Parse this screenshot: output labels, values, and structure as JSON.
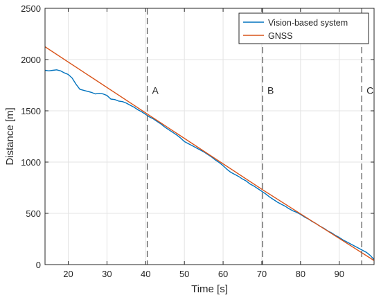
{
  "chart_data": {
    "type": "line",
    "title": "",
    "xlabel": "Time [s]",
    "ylabel": "Distance [m]",
    "xlim": [
      14,
      99
    ],
    "ylim": [
      0,
      2500
    ],
    "xticks": [
      20,
      30,
      40,
      50,
      60,
      70,
      80,
      90
    ],
    "yticks": [
      0,
      500,
      1000,
      1500,
      2000,
      2500
    ],
    "grid": true,
    "legend_position": "top-right",
    "series": [
      {
        "name": "Vision-based system",
        "color": "#0072BD",
        "x": [
          14,
          15,
          16,
          17,
          18,
          19,
          20,
          21,
          22,
          23,
          24,
          25,
          26,
          27,
          28,
          29,
          30,
          31,
          32,
          33,
          34,
          35,
          36,
          37,
          38,
          39,
          40,
          41,
          42,
          43,
          44,
          45,
          46,
          47,
          48,
          49,
          50,
          51,
          52,
          53,
          54,
          55,
          56,
          57,
          58,
          59,
          60,
          61,
          62,
          63,
          64,
          65,
          66,
          67,
          68,
          69,
          70,
          71,
          72,
          73,
          74,
          75,
          76,
          77,
          78,
          79,
          80,
          81,
          82,
          83,
          84,
          85,
          86,
          87,
          88,
          89,
          90,
          91,
          92,
          93,
          94,
          95,
          96,
          97,
          98,
          99
        ],
        "y": [
          1895,
          1890,
          1895,
          1900,
          1890,
          1870,
          1855,
          1820,
          1760,
          1710,
          1700,
          1690,
          1680,
          1665,
          1670,
          1665,
          1650,
          1615,
          1610,
          1595,
          1590,
          1575,
          1555,
          1535,
          1510,
          1490,
          1465,
          1440,
          1420,
          1395,
          1370,
          1340,
          1315,
          1290,
          1265,
          1235,
          1200,
          1180,
          1160,
          1140,
          1120,
          1100,
          1075,
          1050,
          1020,
          995,
          965,
          930,
          900,
          880,
          860,
          835,
          815,
          785,
          765,
          740,
          715,
          690,
          660,
          635,
          610,
          590,
          570,
          545,
          525,
          510,
          490,
          465,
          445,
          420,
          400,
          375,
          355,
          330,
          310,
          285,
          265,
          240,
          220,
          200,
          180,
          160,
          140,
          120,
          90,
          50
        ]
      },
      {
        "name": "GNSS",
        "color": "#D95319",
        "x": [
          14,
          70,
          99
        ],
        "y": [
          2125,
          735,
          40
        ]
      }
    ],
    "vlines": [
      {
        "x": 40.4,
        "label": "A",
        "color": "#555555"
      },
      {
        "x": 70.2,
        "label": "B",
        "color": "#555555"
      },
      {
        "x": 95.8,
        "label": "C",
        "color": "#555555"
      }
    ]
  }
}
